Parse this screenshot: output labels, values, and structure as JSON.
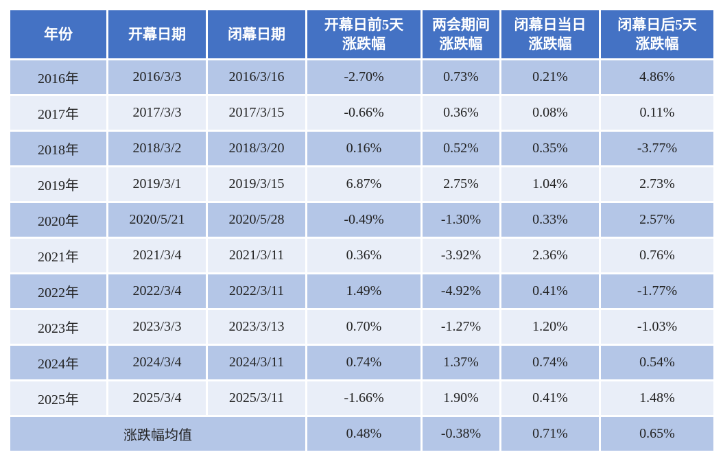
{
  "table": {
    "header": [
      "年份",
      "开幕日期",
      "闭幕日期",
      "开幕日前5天\n涨跌幅",
      "两会期间\n涨跌幅",
      "闭幕日当日\n涨跌幅",
      "闭幕日后5天\n涨跌幅"
    ],
    "rows": [
      [
        "2016年",
        "2016/3/3",
        "2016/3/16",
        "-2.70%",
        "0.73%",
        "0.21%",
        "4.86%"
      ],
      [
        "2017年",
        "2017/3/3",
        "2017/3/15",
        "-0.66%",
        "0.36%",
        "0.08%",
        "0.11%"
      ],
      [
        "2018年",
        "2018/3/2",
        "2018/3/20",
        "0.16%",
        "0.52%",
        "0.35%",
        "-3.77%"
      ],
      [
        "2019年",
        "2019/3/1",
        "2019/3/15",
        "6.87%",
        "2.75%",
        "1.04%",
        "2.73%"
      ],
      [
        "2020年",
        "2020/5/21",
        "2020/5/28",
        "-0.49%",
        "-1.30%",
        "0.33%",
        "2.57%"
      ],
      [
        "2021年",
        "2021/3/4",
        "2021/3/11",
        "0.36%",
        "-3.92%",
        "2.36%",
        "0.76%"
      ],
      [
        "2022年",
        "2022/3/4",
        "2022/3/11",
        "1.49%",
        "-4.92%",
        "0.41%",
        "-1.77%"
      ],
      [
        "2023年",
        "2023/3/3",
        "2023/3/13",
        "0.70%",
        "-1.27%",
        "1.20%",
        "-1.03%"
      ],
      [
        "2024年",
        "2024/3/4",
        "2024/3/11",
        "0.74%",
        "1.37%",
        "0.74%",
        "0.54%"
      ],
      [
        "2025年",
        "2025/3/4",
        "2025/3/11",
        "-1.66%",
        "1.90%",
        "0.41%",
        "1.48%"
      ]
    ],
    "footer": {
      "label": "涨跌幅均值",
      "values": [
        "0.48%",
        "-0.38%",
        "0.71%",
        "0.65%"
      ]
    }
  }
}
